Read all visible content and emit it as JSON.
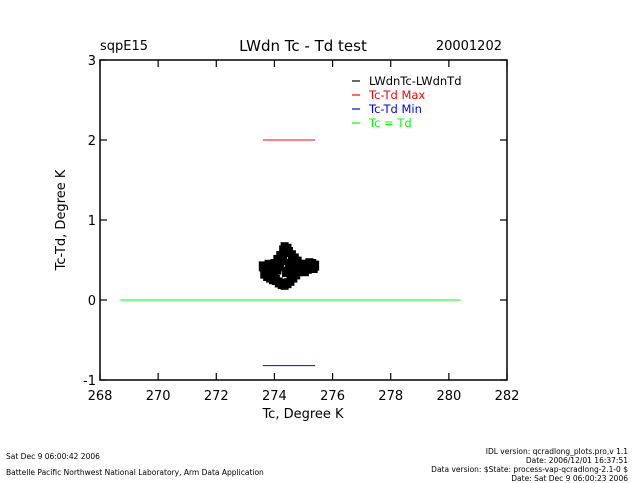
{
  "chart_data": {
    "type": "scatter",
    "site": "sqpE15",
    "title": "LWdn Tc - Td test",
    "date": "20001202",
    "xlabel": "Tc, Degree K",
    "ylabel": "Tc-Td, Degree K",
    "xlim": [
      268,
      282
    ],
    "ylim": [
      -1,
      3
    ],
    "x_ticks": [
      268,
      270,
      272,
      274,
      276,
      278,
      280,
      282
    ],
    "y_ticks": [
      -1,
      0,
      1,
      2,
      3
    ],
    "grid": false,
    "legend_position": "top-right",
    "series": [
      {
        "name": "LWdnTc-LWdnTd",
        "color": "#000000",
        "kind": "points",
        "points": [
          [
            273.6,
            0.42
          ],
          [
            273.7,
            0.38
          ],
          [
            273.8,
            0.35
          ],
          [
            273.9,
            0.4
          ],
          [
            274.0,
            0.45
          ],
          [
            274.1,
            0.5
          ],
          [
            274.2,
            0.55
          ],
          [
            274.3,
            0.62
          ],
          [
            274.35,
            0.66
          ],
          [
            274.45,
            0.64
          ],
          [
            274.5,
            0.6
          ],
          [
            274.6,
            0.56
          ],
          [
            274.7,
            0.52
          ],
          [
            274.8,
            0.48
          ],
          [
            274.9,
            0.44
          ],
          [
            275.0,
            0.42
          ],
          [
            275.1,
            0.44
          ],
          [
            275.2,
            0.46
          ],
          [
            275.3,
            0.45
          ],
          [
            275.4,
            0.43
          ],
          [
            273.65,
            0.33
          ],
          [
            273.75,
            0.3
          ],
          [
            273.85,
            0.28
          ],
          [
            273.95,
            0.26
          ],
          [
            274.05,
            0.25
          ],
          [
            274.15,
            0.22
          ],
          [
            274.25,
            0.2
          ],
          [
            274.35,
            0.19
          ],
          [
            274.45,
            0.21
          ],
          [
            274.55,
            0.24
          ],
          [
            274.65,
            0.28
          ],
          [
            274.75,
            0.32
          ],
          [
            274.85,
            0.36
          ],
          [
            274.95,
            0.38
          ],
          [
            275.05,
            0.36
          ],
          [
            275.15,
            0.39
          ],
          [
            275.25,
            0.41
          ],
          [
            275.35,
            0.4
          ],
          [
            274.2,
            0.42
          ],
          [
            274.4,
            0.35
          ],
          [
            274.6,
            0.4
          ],
          [
            274.8,
            0.4
          ],
          [
            274.0,
            0.3
          ],
          [
            274.3,
            0.5
          ],
          [
            274.5,
            0.45
          ],
          [
            273.8,
            0.44
          ],
          [
            274.1,
            0.38
          ],
          [
            274.7,
            0.44
          ]
        ]
      },
      {
        "name": "Tc-Td Max",
        "color": "#ff0000",
        "kind": "line",
        "x": [
          273.6,
          275.4
        ],
        "y": [
          2.0,
          2.0
        ]
      },
      {
        "name": "Tc-Td Min",
        "color": "#0000ff",
        "kind": "line",
        "x": [
          273.6,
          275.4
        ],
        "y": [
          -0.82,
          -0.82
        ]
      },
      {
        "name": "Tc = Td",
        "color": "#00ff00",
        "kind": "line",
        "x": [
          268.7,
          280.4
        ],
        "y": [
          0,
          0
        ]
      }
    ]
  },
  "footer": {
    "left_line1": "Sat Dec  9 06:00:42 2006",
    "left_line2": "Battelle Pacific Northwest National Laboratory, Arm Data Application",
    "right_line1": "IDL version: qcradlong_plots.pro,v 1.1",
    "right_line2": "Date: 2006/12/01 16:37:51",
    "right_line3": "Data version: $State: process-vap-qcradlong-2.1-0 $",
    "right_line4": "Date: Sat Dec  9 06:00:23 2006"
  }
}
